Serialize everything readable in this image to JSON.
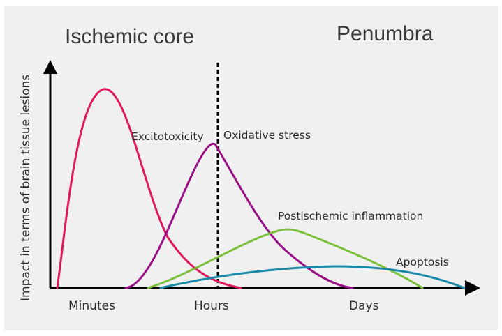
{
  "regions": {
    "left_title": "Ischemic core",
    "right_title": "Penumbra"
  },
  "axes": {
    "y_label": "Impact in terms of brain tissue lesions",
    "x_ticks": [
      "Minutes",
      "Hours",
      "Days"
    ]
  },
  "curves": [
    {
      "id": "excitotoxicity",
      "label": "Excitotoxicity",
      "color": "#e0185f"
    },
    {
      "id": "oxidative",
      "label": "Oxidative stress",
      "color": "#9a0f86"
    },
    {
      "id": "inflammation",
      "label": "Postischemic inflammation",
      "color": "#7cbf3b"
    },
    {
      "id": "apoptosis",
      "label": "Apoptosis",
      "color": "#1a8aa8"
    }
  ],
  "colors": {
    "axis": "#000000",
    "divider": "#000000",
    "panel_bg": "#f0f0f0"
  }
}
